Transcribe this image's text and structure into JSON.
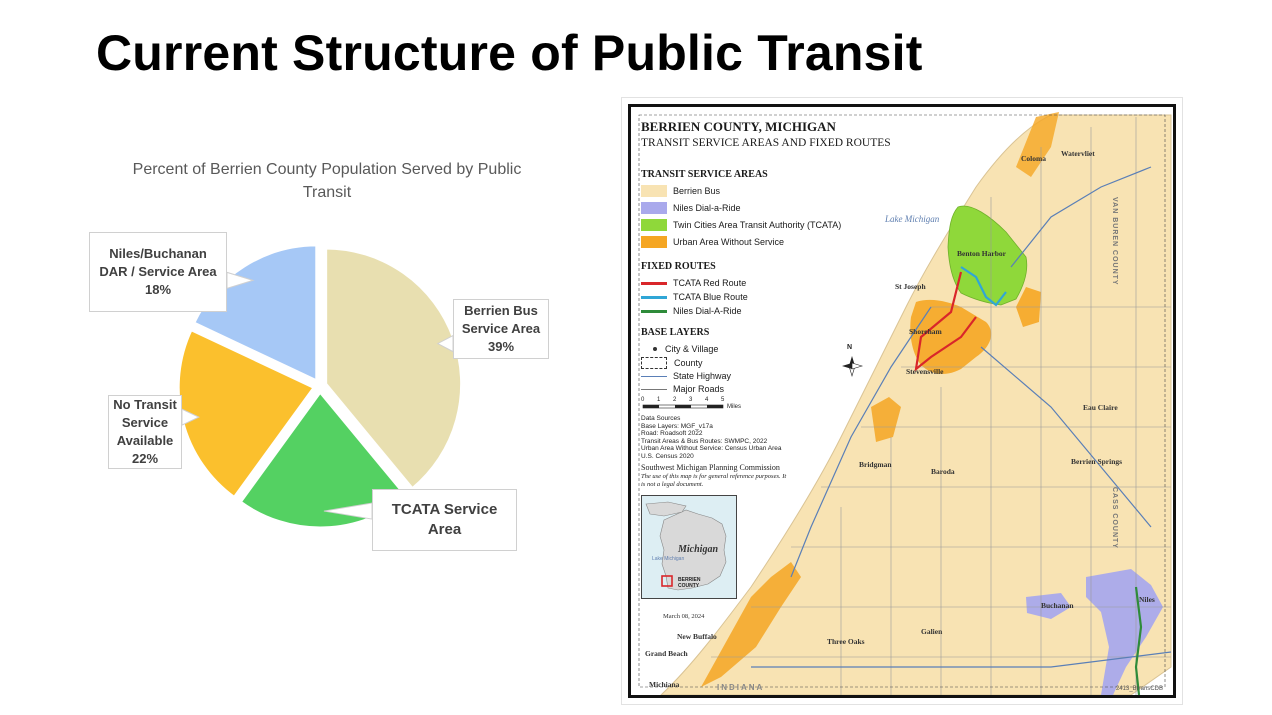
{
  "slide": {
    "title": "Current Structure of Public Transit"
  },
  "chart_data": {
    "type": "pie",
    "title": "Percent of Berrien County Population Served by Public Transit",
    "categories": [
      "Berrien Bus Service Area",
      "TCATA Service Area",
      "No Transit Service Available",
      "Niles/Buchanan DAR / Service Area"
    ],
    "values": [
      39,
      21,
      22,
      18
    ],
    "value_labels": [
      "39%",
      "",
      "22%",
      "18%"
    ],
    "colors": [
      "#e8dfb0",
      "#54d162",
      "#fbc02d",
      "#a6c8f6"
    ],
    "callouts": [
      {
        "lines": [
          "Berrien Bus",
          "Service Area",
          "39%"
        ]
      },
      {
        "lines": [
          "TCATA Service",
          "Area"
        ]
      },
      {
        "lines": [
          "No Transit",
          "Service",
          "Available",
          "22%"
        ]
      },
      {
        "lines": [
          "Niles/Buchanan",
          "DAR / Service Area",
          "18%"
        ]
      }
    ],
    "legend": "none"
  },
  "map": {
    "title": "BERRIEN COUNTY, MICHIGAN",
    "subtitle": "TRANSIT SERVICE AREAS AND FIXED ROUTES",
    "service_areas": {
      "heading": "TRANSIT SERVICE AREAS",
      "items": [
        {
          "label": "Berrien Bus",
          "color": "#f8e3b3"
        },
        {
          "label": "Niles Dial-a-Ride",
          "color": "#a9a9ec"
        },
        {
          "label": "Twin Cities Area Transit Authority (TCATA)",
          "color": "#8fd83a"
        },
        {
          "label": "Urban Area Without Service",
          "color": "#f5a623"
        }
      ]
    },
    "fixed_routes": {
      "heading": "FIXED ROUTES",
      "items": [
        {
          "label": "TCATA Red Route",
          "color": "#d9262a"
        },
        {
          "label": "TCATA Blue Route",
          "color": "#30a6d6"
        },
        {
          "label": "Niles Dial-A-Ride",
          "color": "#2e8b3a"
        }
      ]
    },
    "base_layers": {
      "heading": "BASE LAYERS",
      "items": [
        {
          "label": "City & Village",
          "symbol": "dot"
        },
        {
          "label": "County",
          "symbol": "dashed-box"
        },
        {
          "label": "State Highway",
          "symbol": "blue-line"
        },
        {
          "label": "Major Roads",
          "symbol": "gray-line"
        }
      ]
    },
    "scale": {
      "ticks": [
        "0",
        "1",
        "2",
        "3",
        "4",
        "5"
      ],
      "unit": "Miles"
    },
    "data_sources": [
      "Data Sources",
      "Base Layers: MGF_v17a",
      "Road: Roadsoft 2022",
      "Transit Areas & Bus Routes: SWMPC, 2022",
      "Urban Area Without Service: Census Urban Area",
      "U.S. Census 2020"
    ],
    "agency": "Southwest Michigan Planning Commission",
    "disclaimer": "The use of this map is for general reference purposes. It is not a legal document.",
    "inset": {
      "label": "Michigan",
      "lake": "Lake Michigan",
      "county_label": [
        "BERRIEN",
        "COUNTY"
      ]
    },
    "lake_label": "Lake Michigan",
    "compass": "N",
    "date": "March 08, 2024",
    "state_label": "INDIANA",
    "map_id": "2413_BrransCDB",
    "county_labels": {
      "east_top": "VAN BUREN COUNTY",
      "east_bottom": "CASS COUNTY"
    },
    "towns": [
      "Coloma",
      "Watervliet",
      "Benton Harbor",
      "St Joseph",
      "Shoreham",
      "Stevensville",
      "Eau Claire",
      "Berrien Springs",
      "Bridgman",
      "Baroda",
      "Buchanan",
      "Niles",
      "Galien",
      "Three Oaks",
      "New Buffalo",
      "Grand Beach",
      "Michiana"
    ]
  }
}
